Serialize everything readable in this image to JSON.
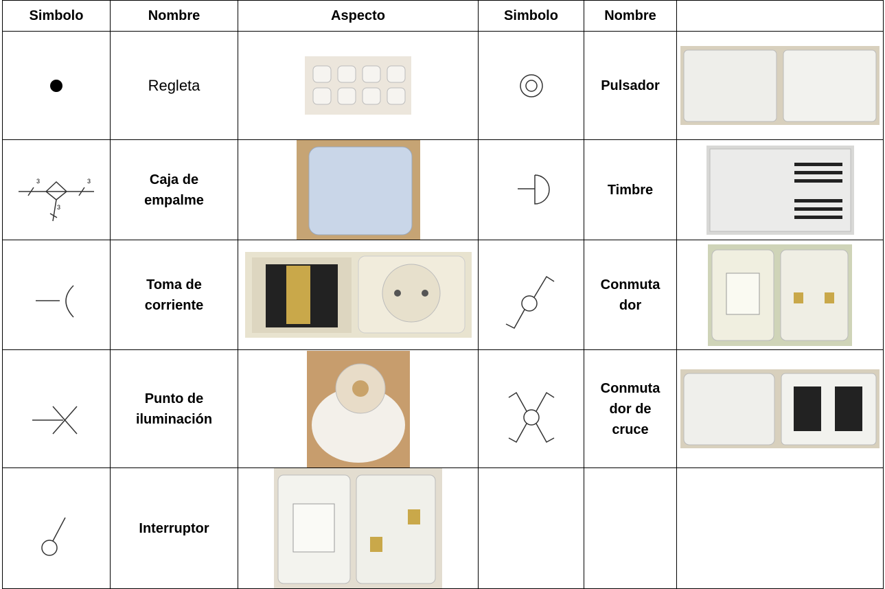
{
  "header": [
    "Simbolo",
    "Nombre",
    "Aspecto",
    "Simbolo",
    "Nombre"
  ],
  "rows": [
    {
      "left": {
        "name": [
          "Regleta"
        ]
      },
      "right": {
        "name": [
          "Pulsador"
        ]
      }
    },
    {
      "left": {
        "name": [
          "Caja de",
          "empalme"
        ]
      },
      "right": {
        "name": [
          "Timbre"
        ]
      }
    },
    {
      "left": {
        "name": [
          "Toma de",
          "corriente"
        ]
      },
      "right": {
        "name": [
          "Conmuta",
          "dor"
        ]
      }
    },
    {
      "left": {
        "name": [
          "Punto de",
          "iluminación"
        ]
      },
      "right": {
        "name": [
          "Conmuta",
          "dor de",
          "cruce"
        ]
      }
    },
    {
      "left": {
        "name": [
          "Interruptor"
        ]
      }
    }
  ],
  "junction_labels": [
    "3",
    "3",
    "3"
  ]
}
